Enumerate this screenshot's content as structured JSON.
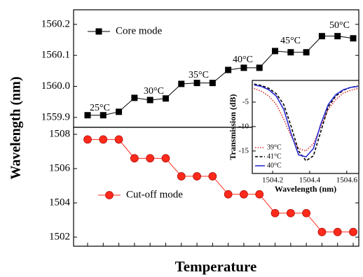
{
  "chart_data": [
    {
      "type": "line",
      "y_label": "Wavelength (nm)",
      "categories": [
        null,
        null,
        null,
        null,
        null,
        null,
        null,
        null,
        null,
        null,
        null,
        null,
        null,
        null,
        null,
        null,
        null,
        null
      ],
      "series": [
        {
          "name": "Core mode",
          "color": "#000000",
          "marker": "square",
          "values": [
            1559.907,
            1559.907,
            1559.918,
            1559.963,
            1559.956,
            1559.961,
            1560.008,
            1560.011,
            1560.011,
            1560.053,
            1560.06,
            1560.06,
            1560.114,
            1560.11,
            1560.11,
            1560.162,
            1560.162,
            1560.155
          ]
        }
      ],
      "ylim": [
        1559.868,
        1560.247
      ],
      "yticks": [
        {
          "value": 1559.9,
          "label": "1559.9"
        },
        {
          "value": 1560.0,
          "label": "1560.0"
        },
        {
          "value": 1560.1,
          "label": "1560.1"
        },
        {
          "value": 1560.2,
          "label": "1560.2"
        }
      ],
      "annotations": [
        "25°C",
        "30°C",
        "35°C",
        "40°C",
        "45°C",
        "50°C"
      ]
    },
    {
      "type": "line",
      "x_label": "Temperature",
      "categories": [
        null,
        null,
        null,
        null,
        null,
        null,
        null,
        null,
        null,
        null,
        null,
        null,
        null,
        null,
        null,
        null,
        null,
        null
      ],
      "series": [
        {
          "name": "Cut-off mode",
          "color": "#ff2a1a",
          "marker": "circle",
          "values": [
            1507.7,
            1507.7,
            1507.7,
            1506.6,
            1506.6,
            1506.6,
            1505.55,
            1505.55,
            1505.55,
            1504.5,
            1504.5,
            1504.5,
            1503.4,
            1503.4,
            1503.4,
            1502.3,
            1502.3,
            1502.3
          ]
        }
      ],
      "ylim": [
        1501.47,
        1508.41
      ],
      "yticks": [
        1502,
        1504,
        1506,
        1508
      ]
    },
    {
      "type": "line",
      "x_label": "Wavelength (nm)",
      "y_label": "Transmission (dB)",
      "x": [
        1504.1,
        1504.14,
        1504.18,
        1504.22,
        1504.26,
        1504.3,
        1504.34,
        1504.38,
        1504.42,
        1504.46,
        1504.5,
        1504.54,
        1504.58,
        1504.62,
        1504.66
      ],
      "series": [
        {
          "name": "39°C",
          "color": "#e03030",
          "line_style": "dotted",
          "values": [
            -2.2,
            -2.8,
            -3.8,
            -5.5,
            -8.5,
            -12,
            -14.5,
            -15,
            -13.5,
            -10,
            -6.5,
            -4.5,
            -3.2,
            -2.6,
            -2.2
          ]
        },
        {
          "name": "41°C",
          "color": "#000000",
          "line_style": "dashed",
          "values": [
            -1.3,
            -1.6,
            -2.2,
            -3.3,
            -5.5,
            -10,
            -15,
            -17,
            -16,
            -11,
            -6,
            -3.8,
            -2.6,
            -2,
            -1.7
          ]
        },
        {
          "name": "40°C",
          "color": "#2a2ad0",
          "line_style": "solid",
          "values": [
            -1.5,
            -1.8,
            -2.5,
            -3.8,
            -6.5,
            -11.5,
            -15.8,
            -16.2,
            -14.5,
            -9.5,
            -5.5,
            -3.5,
            -2.5,
            -2,
            -1.8
          ]
        }
      ],
      "xlim": [
        1504.09,
        1504.665
      ],
      "xticks": [
        1504.2,
        1504.4,
        1504.6
      ],
      "ylim": [
        -19.6,
        -0.57
      ],
      "yticks": [
        -5,
        -10,
        -15
      ]
    }
  ]
}
